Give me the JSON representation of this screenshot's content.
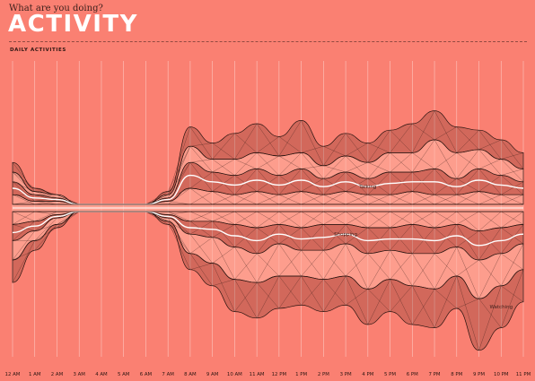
{
  "header": {
    "subtitle": "What are you doing?",
    "title": "ACTIVITY",
    "section_label": "DAILY ACTIVITIES"
  },
  "colors": {
    "background": "#fa8072",
    "line": "#2a1410",
    "highlight": "#ffffff",
    "fill_light": "#ffb4a4",
    "fill_dark": "#6b2a22"
  },
  "chart_data": {
    "type": "area",
    "layout": "mirrored streamgraph (upper and lower stacks about a central baseline)",
    "xlabel": "",
    "ylabel": "",
    "grid": true,
    "x": [
      "12 AM",
      "1 AM",
      "2 AM",
      "3 AM",
      "4 AM",
      "5 AM",
      "6 AM",
      "7 AM",
      "8 AM",
      "9 AM",
      "10 AM",
      "11 AM",
      "12 PM",
      "1 PM",
      "2 PM",
      "3 PM",
      "4 PM",
      "5 PM",
      "6 PM",
      "7 PM",
      "8 PM",
      "9 PM",
      "10 PM",
      "11 PM"
    ],
    "x_ticks": [
      "12 AM",
      "1 AM",
      "2 AM",
      "3 AM",
      "4 AM",
      "5 AM",
      "6 AM",
      "7 AM",
      "8 AM",
      "9 AM",
      "10 AM",
      "11 AM",
      "12 PM",
      "1 PM",
      "2 PM",
      "3 PM",
      "4 PM",
      "5 PM",
      "6 PM",
      "7 PM",
      "8 PM",
      "9 PM",
      "10 PM",
      "11 PM"
    ],
    "series_labels": [
      "Talking",
      "Shopping",
      "Watching"
    ],
    "upper": [
      {
        "name": "",
        "values": [
          3,
          1,
          1,
          0,
          0,
          0,
          0,
          1,
          5,
          4,
          3,
          4,
          3,
          4,
          3,
          4,
          3,
          3,
          4,
          3,
          3,
          4,
          3,
          3
        ]
      },
      {
        "name": "Talking",
        "values": [
          4,
          2,
          1,
          0,
          0,
          0,
          0,
          1,
          8,
          6,
          6,
          7,
          6,
          7,
          5,
          6,
          5,
          7,
          6,
          8,
          5,
          7,
          6,
          4
        ]
      },
      {
        "name": "",
        "values": [
          3,
          1,
          1,
          0,
          0,
          0,
          0,
          1,
          5,
          4,
          5,
          5,
          6,
          5,
          4,
          5,
          5,
          6,
          6,
          9,
          8,
          6,
          5,
          4
        ]
      },
      {
        "name": "",
        "values": [
          3,
          1,
          0,
          0,
          0,
          0,
          0,
          1,
          6,
          5,
          8,
          9,
          6,
          10,
          6,
          7,
          6,
          7,
          9,
          9,
          8,
          6,
          6,
          5
        ]
      }
    ],
    "lower": [
      {
        "name": "",
        "values": [
          4,
          3,
          1,
          0,
          0,
          0,
          0,
          1,
          3,
          3,
          4,
          5,
          4,
          5,
          4,
          4,
          5,
          5,
          4,
          5,
          4,
          6,
          5,
          4
        ]
      },
      {
        "name": "Shopping",
        "values": [
          5,
          3,
          1,
          0,
          0,
          0,
          0,
          1,
          4,
          5,
          7,
          8,
          6,
          7,
          8,
          6,
          8,
          7,
          9,
          8,
          7,
          9,
          8,
          6
        ]
      },
      {
        "name": "",
        "values": [
          6,
          3,
          2,
          0,
          0,
          0,
          0,
          1,
          6,
          8,
          10,
          9,
          10,
          8,
          9,
          10,
          11,
          9,
          10,
          11,
          9,
          12,
          10,
          8
        ]
      },
      {
        "name": "Watching",
        "values": [
          7,
          3,
          1,
          0,
          0,
          0,
          0,
          1,
          5,
          7,
          10,
          11,
          10,
          9,
          10,
          9,
          11,
          10,
          12,
          12,
          10,
          16,
          13,
          10
        ]
      }
    ]
  }
}
